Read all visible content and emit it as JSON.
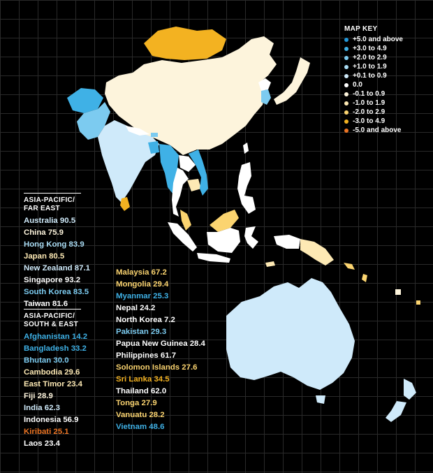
{
  "colors": {
    "plus5": "#2196d8",
    "plus3": "#3fb1e6",
    "plus2": "#7ccbf0",
    "plus1": "#a9dcf4",
    "plus01": "#cfeafa",
    "zero": "#ffffff",
    "minus01": "#fdf4dc",
    "minus1": "#fde9b4",
    "minus2": "#fbd470",
    "minus3": "#f3b221",
    "minus5": "#ec7524"
  },
  "legend": {
    "title": "MAP KEY",
    "items": [
      {
        "label": "+5.0 and above",
        "color": "#2196d8"
      },
      {
        "label": "+3.0 to 4.9",
        "color": "#3fb1e6"
      },
      {
        "label": "+2.0 to 2.9",
        "color": "#7ccbf0"
      },
      {
        "label": "+1.0 to 1.9",
        "color": "#a9dcf4"
      },
      {
        "label": "+0.1 to 0.9",
        "color": "#cfeafa"
      },
      {
        "label": "0.0",
        "color": "#ffffff"
      },
      {
        "label": "-0.1 to 0.9",
        "color": "#fdf4dc"
      },
      {
        "label": "-1.0 to 1.9",
        "color": "#fde9b4"
      },
      {
        "label": "-2.0 to 2.9",
        "color": "#fbd470"
      },
      {
        "label": "-3.0 to 4.9",
        "color": "#f3b221"
      },
      {
        "label": "-5.0 and above",
        "color": "#ec7524"
      }
    ]
  },
  "far_east": {
    "title_line1": "ASIA-PACIFIC/",
    "title_line2": "FAR EAST",
    "items": [
      {
        "text": "Australia 90.5",
        "color": "#cfeafa"
      },
      {
        "text": "China 75.9",
        "color": "#fdf4dc"
      },
      {
        "text": "Hong Kong 83.9",
        "color": "#a9dcf4"
      },
      {
        "text": "Japan 80.5",
        "color": "#fde9b4"
      },
      {
        "text": "New Zealand 87.1",
        "color": "#cfeafa"
      },
      {
        "text": "Singapore 93.2",
        "color": "#ffffff"
      },
      {
        "text": "South Korea 83.5",
        "color": "#7ccbf0"
      },
      {
        "text": "Taiwan 81.6",
        "color": "#ffffff"
      }
    ]
  },
  "south_east": {
    "title_line1": "ASIA-PACIFIC/",
    "title_line2": "SOUTH & EAST",
    "items": [
      {
        "text": "Afghanistan 14.2",
        "color": "#3fb1e6"
      },
      {
        "text": "Bangladesh 33.2",
        "color": "#3fb1e6"
      },
      {
        "text": "Bhutan 30.0",
        "color": "#7ccbf0"
      },
      {
        "text": "Cambodia 29.6",
        "color": "#fde9b4"
      },
      {
        "text": "East Timor 23.4",
        "color": "#fde9b4"
      },
      {
        "text": "Fiji 28.9",
        "color": "#fdf4dc"
      },
      {
        "text": "India 62.3",
        "color": "#cfeafa"
      },
      {
        "text": "Indonesia 56.9",
        "color": "#ffffff"
      },
      {
        "text": "Kiribati 25.1",
        "color": "#ec7524"
      },
      {
        "text": "Laos 23.4",
        "color": "#ffffff"
      }
    ]
  },
  "south_east_2": {
    "items": [
      {
        "text": "Malaysia 67.2",
        "color": "#fbd470"
      },
      {
        "text": "Mongolia 29.4",
        "color": "#fbd470"
      },
      {
        "text": "Myanmar 25.3",
        "color": "#3fb1e6"
      },
      {
        "text": "Nepal 24.2",
        "color": "#ffffff"
      },
      {
        "text": "North Korea 7.2",
        "color": "#ffffff"
      },
      {
        "text": "Pakistan 29.3",
        "color": "#7ccbf0"
      },
      {
        "text": "Papua New Guinea 28.4",
        "color": "#ffffff"
      },
      {
        "text": "Philippines 61.7",
        "color": "#ffffff"
      },
      {
        "text": "Solomon Islands 27.6",
        "color": "#fbd470"
      },
      {
        "text": "Sri Lanka 34.5",
        "color": "#f3b221"
      },
      {
        "text": "Thailand 62.0",
        "color": "#ffffff"
      },
      {
        "text": "Tonga 27.9",
        "color": "#fbd470"
      },
      {
        "text": "Vanuatu 28.2",
        "color": "#fbd470"
      },
      {
        "text": "Vietnam 48.6",
        "color": "#3fb1e6"
      }
    ]
  }
}
